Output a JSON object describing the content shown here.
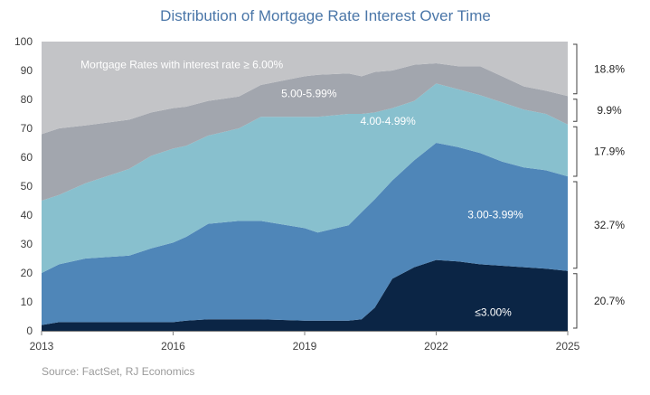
{
  "chart_data": {
    "type": "area",
    "stacked": true,
    "title": "Distribution of Mortgage Rate Interest Over Time",
    "source": "Source: FactSet, RJ Economics",
    "xlabel": "",
    "ylabel": "",
    "xlim": [
      2013,
      2025
    ],
    "ylim": [
      0,
      100
    ],
    "x_ticks": [
      "2013",
      "2016",
      "2019",
      "2022",
      "2025"
    ],
    "y_ticks": [
      "0",
      "10",
      "20",
      "30",
      "40",
      "50",
      "60",
      "70",
      "80",
      "90",
      "100"
    ],
    "grid": false,
    "x": [
      2013,
      2013.4,
      2014,
      2015,
      2015.5,
      2016,
      2016.3,
      2016.8,
      2017.5,
      2018,
      2019,
      2019.3,
      2020,
      2020.3,
      2020.6,
      2021,
      2021.5,
      2022,
      2022.5,
      2023,
      2023.5,
      2024,
      2024.5,
      2025
    ],
    "series": [
      {
        "name": "≤3.00%",
        "color": "#0b2545",
        "values": [
          2,
          3,
          3,
          3,
          3,
          3,
          3.5,
          4,
          4,
          4,
          3.5,
          3.5,
          3.5,
          4,
          8,
          18,
          22,
          24.5,
          24,
          23,
          22.5,
          22,
          21.5,
          20.7
        ]
      },
      {
        "name": "3.00-3.99%",
        "color": "#4f86b8",
        "values": [
          18,
          20,
          22,
          23,
          25.5,
          27.5,
          29,
          33,
          34,
          34,
          32,
          30.5,
          33,
          37,
          37.5,
          34,
          37,
          40.5,
          39.5,
          38.5,
          36,
          34.5,
          34,
          32.7
        ]
      },
      {
        "name": "4.00-4.99%",
        "color": "#88c0ce",
        "values": [
          25,
          24,
          26,
          30,
          32,
          32.5,
          31.5,
          30.5,
          32,
          36,
          38.5,
          40,
          38.5,
          34,
          30,
          25,
          20.5,
          20.5,
          20,
          20,
          20.5,
          20,
          19.5,
          17.9
        ]
      },
      {
        "name": "5.00-5.99%",
        "color": "#a2a6ae",
        "values": [
          23,
          23,
          20,
          17,
          15,
          14,
          13.5,
          12,
          11,
          11,
          14,
          14.5,
          14,
          13,
          14,
          13,
          12.5,
          7,
          8,
          10,
          9,
          8,
          8,
          9.9
        ]
      },
      {
        "name": "Mortgage Rates with interest rate ≥ 6.00%",
        "color": "#c3c4c7",
        "values": [
          32,
          30,
          29,
          27,
          24.5,
          23,
          22.5,
          20.5,
          19,
          15,
          12,
          11.5,
          11,
          12,
          10.5,
          10,
          8,
          7.5,
          8.5,
          8.5,
          12,
          15.5,
          17,
          18.8
        ]
      }
    ],
    "series_labels": [
      {
        "name": "≤3.00%",
        "x": 2023.3,
        "y": 6.4,
        "color": "#ffffff"
      },
      {
        "name": "3.00-3.99%",
        "x": 2023.35,
        "y": 40.2,
        "color": "#ffffff"
      },
      {
        "name": "4.00-4.99%",
        "x": 2020.9,
        "y": 72.5,
        "color": "#ffffff"
      },
      {
        "name": "5.00-5.99%",
        "x": 2019.1,
        "y": 82,
        "color": "#ffffff"
      },
      {
        "name": "Mortgage Rates with interest rate ≥ 6.00%",
        "x": 2016.2,
        "y": 92,
        "color": "#ffffff"
      }
    ],
    "current_shares": [
      {
        "label": "20.7%",
        "low": 0,
        "high": 20.7
      },
      {
        "label": "32.7%",
        "low": 20.7,
        "high": 52.5
      },
      {
        "label": "17.9%",
        "low": 52.5,
        "high": 71.5
      },
      {
        "label": "9.9%",
        "low": 71.5,
        "high": 81
      },
      {
        "label": "18.8%",
        "low": 81,
        "high": 100
      }
    ]
  }
}
